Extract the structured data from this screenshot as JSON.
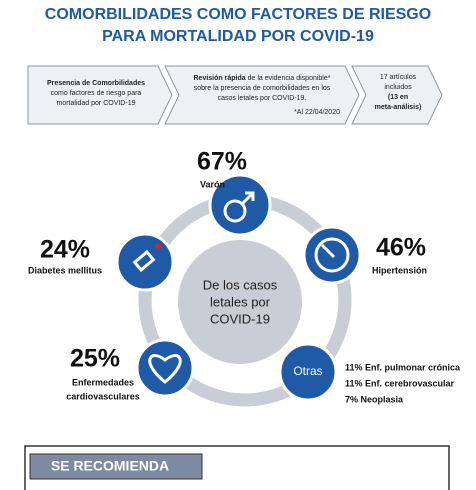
{
  "header": {
    "title_lines": [
      "COMORBILIDADES COMO FACTORES DE RIESGO",
      "PARA MORTALIDAD POR COVID-19"
    ]
  },
  "steps": [
    {
      "lines": [
        [
          "Presencia de Comorbilidades"
        ],
        [
          "como factores de riesgo para"
        ],
        [
          "mortalidad por COVID-19"
        ]
      ]
    },
    {
      "lines": [
        [
          "Revisión rápida",
          " de la evidencia disponible*"
        ],
        [
          "sobre la presencia de comorbilidades en los"
        ],
        [
          "casos letales por COVID-19."
        ]
      ],
      "note": "*Al 22/04/2020"
    },
    {
      "lines": [
        [
          "17 artículos"
        ],
        [
          "incluidos"
        ],
        [
          "(13 en"
        ],
        [
          "meta-análisis)"
        ]
      ]
    }
  ],
  "center": {
    "lines": [
      "De los casos",
      "letales por",
      "COVID-19"
    ]
  },
  "items": [
    {
      "value": "67%",
      "label_lines": [
        "Varón"
      ]
    },
    {
      "value": "46%",
      "label_lines": [
        "Hipertensión"
      ]
    },
    {
      "value": "24%",
      "label_lines": [
        "Diabetes mellitus"
      ]
    },
    {
      "value": "25%",
      "label_lines": [
        "Enfermedades",
        "cardiovasculares"
      ]
    }
  ],
  "others": {
    "label": "Otras",
    "lines": [
      "11% Enf. pulmonar crónica",
      "11% Enf. cerebrovascular",
      "7% Neoplasia"
    ]
  },
  "recommendation": {
    "title": "SE RECOMIENDA"
  }
}
